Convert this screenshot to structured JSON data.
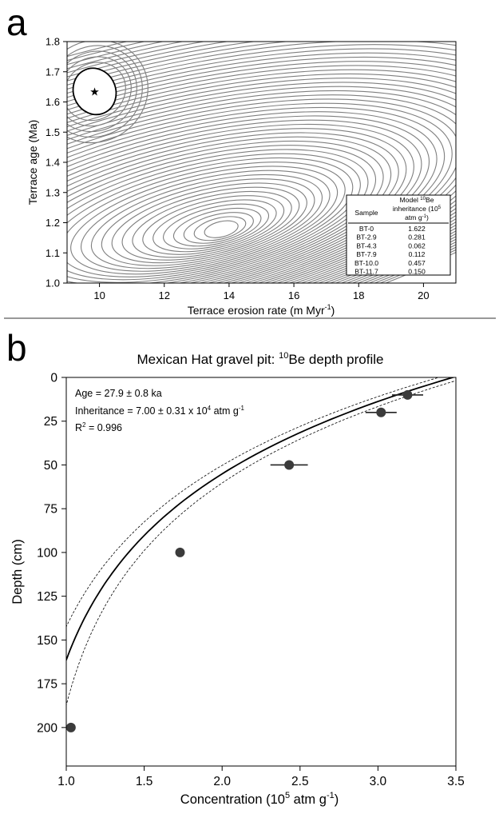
{
  "figure": {
    "separator": true
  },
  "chart_data": [
    {
      "panel": "a",
      "type": "contour",
      "xlabel": "Terrace erosion rate (m Myr",
      "xlabel_sup": "-1",
      "xlabel_tail": ")",
      "ylabel": "Terrace age (Ma)",
      "xlim": [
        9,
        21
      ],
      "ylim": [
        1.0,
        1.8
      ],
      "xticks": [
        10,
        12,
        14,
        16,
        18,
        20
      ],
      "yticks": [
        1.0,
        1.1,
        1.2,
        1.3,
        1.4,
        1.5,
        1.6,
        1.7,
        1.8
      ],
      "best_fit": {
        "erosion_rate": 9.85,
        "age": 1.635,
        "marker": "star"
      },
      "best_ellipse": {
        "cx": 9.85,
        "cy": 1.635,
        "rx": 0.65,
        "ry": 0.078,
        "color": "#000000"
      },
      "contour_color": "#7f7f7f",
      "contour_count": 52,
      "contour_ref": {
        "cx": 13.8,
        "cy": 1.176,
        "ax": 0.55,
        "bx": 0.04
      },
      "contour_tilt": 0.72,
      "table": {
        "headers": [
          "Sample",
          "Model ",
          "Be",
          "inheritance (10",
          "atm g"
        ],
        "header_lines": [
          "Model ¹⁰Be",
          "inheritance (10⁵",
          "atm g⁻¹)"
        ],
        "rows": [
          [
            "BT-0",
            "1.622"
          ],
          [
            "BT-2.9",
            "0.281"
          ],
          [
            "BT-4.3",
            "0.062"
          ],
          [
            "BT-7.9",
            "0.112"
          ],
          [
            "BT-10.0",
            "0.457"
          ],
          [
            "BT-11.7",
            "0.150"
          ]
        ]
      }
    },
    {
      "panel": "b",
      "type": "scatter",
      "title_pre": "Mexican Hat gravel pit: ",
      "title_sup": "10",
      "title_post": "Be depth profile",
      "xlabel": "Concentration (10",
      "xlabel_sup": "5",
      "xlabel_tail": " atm g",
      "xlabel_sup2": "-1",
      "xlabel_end": ")",
      "ylabel": "Depth (cm)",
      "xlim": [
        1.0,
        3.5
      ],
      "ylim": [
        222,
        0
      ],
      "xticks": [
        "1.0",
        "1.5",
        "2.0",
        "2.5",
        "3.0",
        "3.5"
      ],
      "yticks": [
        "0",
        "25",
        "50",
        "75",
        "100",
        "125",
        "150",
        "175",
        "200"
      ],
      "points": [
        {
          "x": 3.19,
          "y": 10,
          "xerr": 0.05
        },
        {
          "x": 3.02,
          "y": 20,
          "xerr": 0.05
        },
        {
          "x": 2.43,
          "y": 50,
          "xerr": 0.06
        },
        {
          "x": 1.73,
          "y": 100,
          "xerr": 0
        },
        {
          "x": 1.03,
          "y": 200,
          "xerr": 0
        }
      ],
      "fit": {
        "inheritance": 0.7,
        "A": 2.78,
        "L": 72.5,
        "half_width": 0.09
      },
      "annotations": {
        "age": "Age = 27.9 ± 0.8 ka",
        "inheritance_pre": "Inheritance = 7.00 ± 0.31 x 10",
        "inheritance_sup": "4",
        "inheritance_post": " atm g",
        "inheritance_sup2": "-1",
        "r2_pre": "R",
        "r2_sup": "2",
        "r2_post": " = 0.996"
      }
    }
  ]
}
